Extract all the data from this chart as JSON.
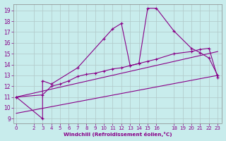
{
  "xlabel": "Windchill (Refroidissement éolien,°C)",
  "background_color": "#c8ecec",
  "grid_color": "#b0c8c8",
  "line_color": "#880088",
  "x_ticks": [
    0,
    2,
    3,
    4,
    5,
    6,
    7,
    8,
    9,
    10,
    11,
    12,
    13,
    14,
    15,
    16,
    18,
    19,
    20,
    21,
    22,
    23
  ],
  "y_ticks": [
    9,
    10,
    11,
    12,
    13,
    14,
    15,
    16,
    17,
    18,
    19
  ],
  "xlim": [
    -0.3,
    23.5
  ],
  "ylim": [
    8.6,
    19.6
  ],
  "series_main_x": [
    0,
    3,
    3,
    4,
    7,
    10,
    11,
    12,
    13,
    14,
    15,
    16,
    18,
    20,
    21,
    22,
    23
  ],
  "series_main_y": [
    11.0,
    9.0,
    12.5,
    12.2,
    13.7,
    16.4,
    17.3,
    17.8,
    13.9,
    14.1,
    19.2,
    19.2,
    17.1,
    15.5,
    15.1,
    14.6,
    13.0
  ],
  "series_smooth_x": [
    0,
    3,
    4,
    5,
    6,
    7,
    8,
    9,
    10,
    11,
    12,
    13,
    14,
    15,
    16,
    18,
    20,
    21,
    22,
    23
  ],
  "series_smooth_y": [
    11.0,
    11.2,
    12.0,
    12.2,
    12.5,
    12.9,
    13.1,
    13.2,
    13.4,
    13.6,
    13.7,
    13.9,
    14.1,
    14.3,
    14.5,
    15.0,
    15.2,
    15.4,
    15.5,
    12.8
  ],
  "series_line1_x": [
    0,
    23
  ],
  "series_line1_y": [
    11.0,
    15.2
  ],
  "series_line2_x": [
    0,
    23
  ],
  "series_line2_y": [
    9.5,
    13.0
  ]
}
